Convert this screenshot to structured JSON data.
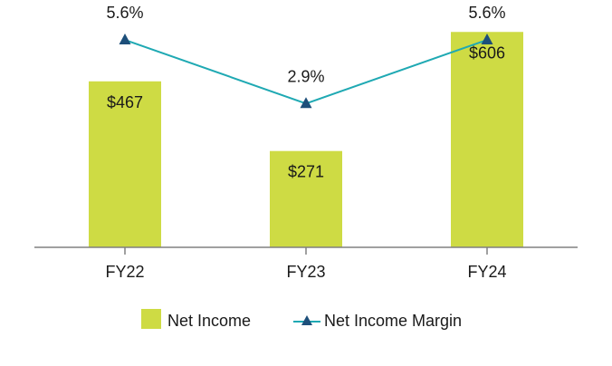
{
  "chart_data": {
    "type": "bar",
    "categories": [
      "FY22",
      "FY23",
      "FY24"
    ],
    "series": [
      {
        "name": "Net Income",
        "kind": "bar",
        "values": [
          467,
          271,
          606
        ],
        "labels": [
          "$467",
          "$271",
          "$606"
        ],
        "color": "#cedb44"
      },
      {
        "name": "Net Income Margin",
        "kind": "line",
        "values": [
          5.6,
          2.9,
          5.6
        ],
        "labels": [
          "5.6%",
          "2.9%",
          "5.6%"
        ],
        "color": "#1fa9b3",
        "marker_color": "#1d4f7a"
      }
    ],
    "axis_color": "#808080",
    "ylim_bar": [
      0,
      650
    ],
    "ylim_line": [
      -3.2,
      6.6
    ],
    "legend": [
      "Net Income",
      "Net Income Margin"
    ]
  }
}
